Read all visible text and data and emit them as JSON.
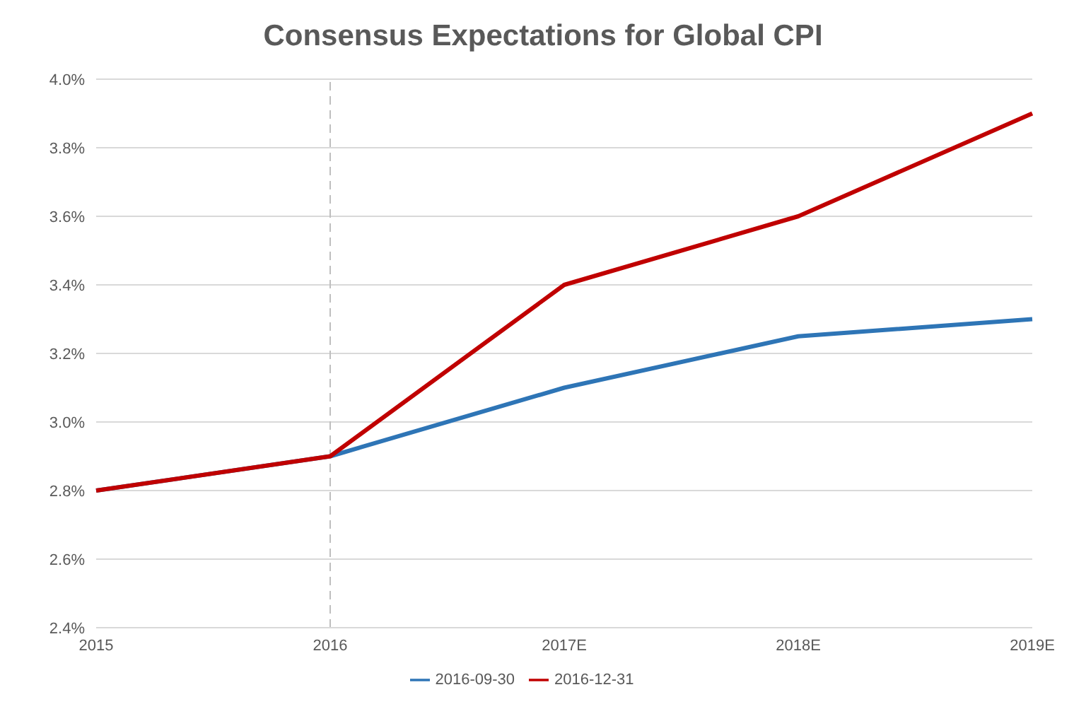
{
  "chart_data": {
    "type": "line",
    "title": "Consensus Expectations for Global CPI",
    "categories": [
      "2015",
      "2016",
      "2017E",
      "2018E",
      "2019E"
    ],
    "series": [
      {
        "name": "2016-09-30",
        "color": "#2e75b6",
        "values": [
          2.8,
          2.9,
          3.1,
          3.25,
          3.3
        ]
      },
      {
        "name": "2016-12-31",
        "color": "#c00000",
        "values": [
          2.8,
          2.9,
          3.4,
          3.6,
          3.9
        ]
      }
    ],
    "ylim": [
      2.4,
      4.0
    ],
    "yticks": [
      {
        "value": 2.4,
        "label": "2.4%"
      },
      {
        "value": 2.6,
        "label": "2.6%"
      },
      {
        "value": 2.8,
        "label": "2.8%"
      },
      {
        "value": 3.0,
        "label": "3.0%"
      },
      {
        "value": 3.2,
        "label": "3.2%"
      },
      {
        "value": 3.4,
        "label": "3.4%"
      },
      {
        "value": 3.6,
        "label": "3.6%"
      },
      {
        "value": 3.8,
        "label": "3.8%"
      },
      {
        "value": 4.0,
        "label": "4.0%"
      }
    ],
    "grid": "y",
    "legend": "bottom",
    "marker": "none",
    "line_style": "solid",
    "ref_lines": [
      {
        "axis": "x",
        "value": "2016",
        "color": "#bfbfbf",
        "line_style": "dashed"
      }
    ]
  }
}
